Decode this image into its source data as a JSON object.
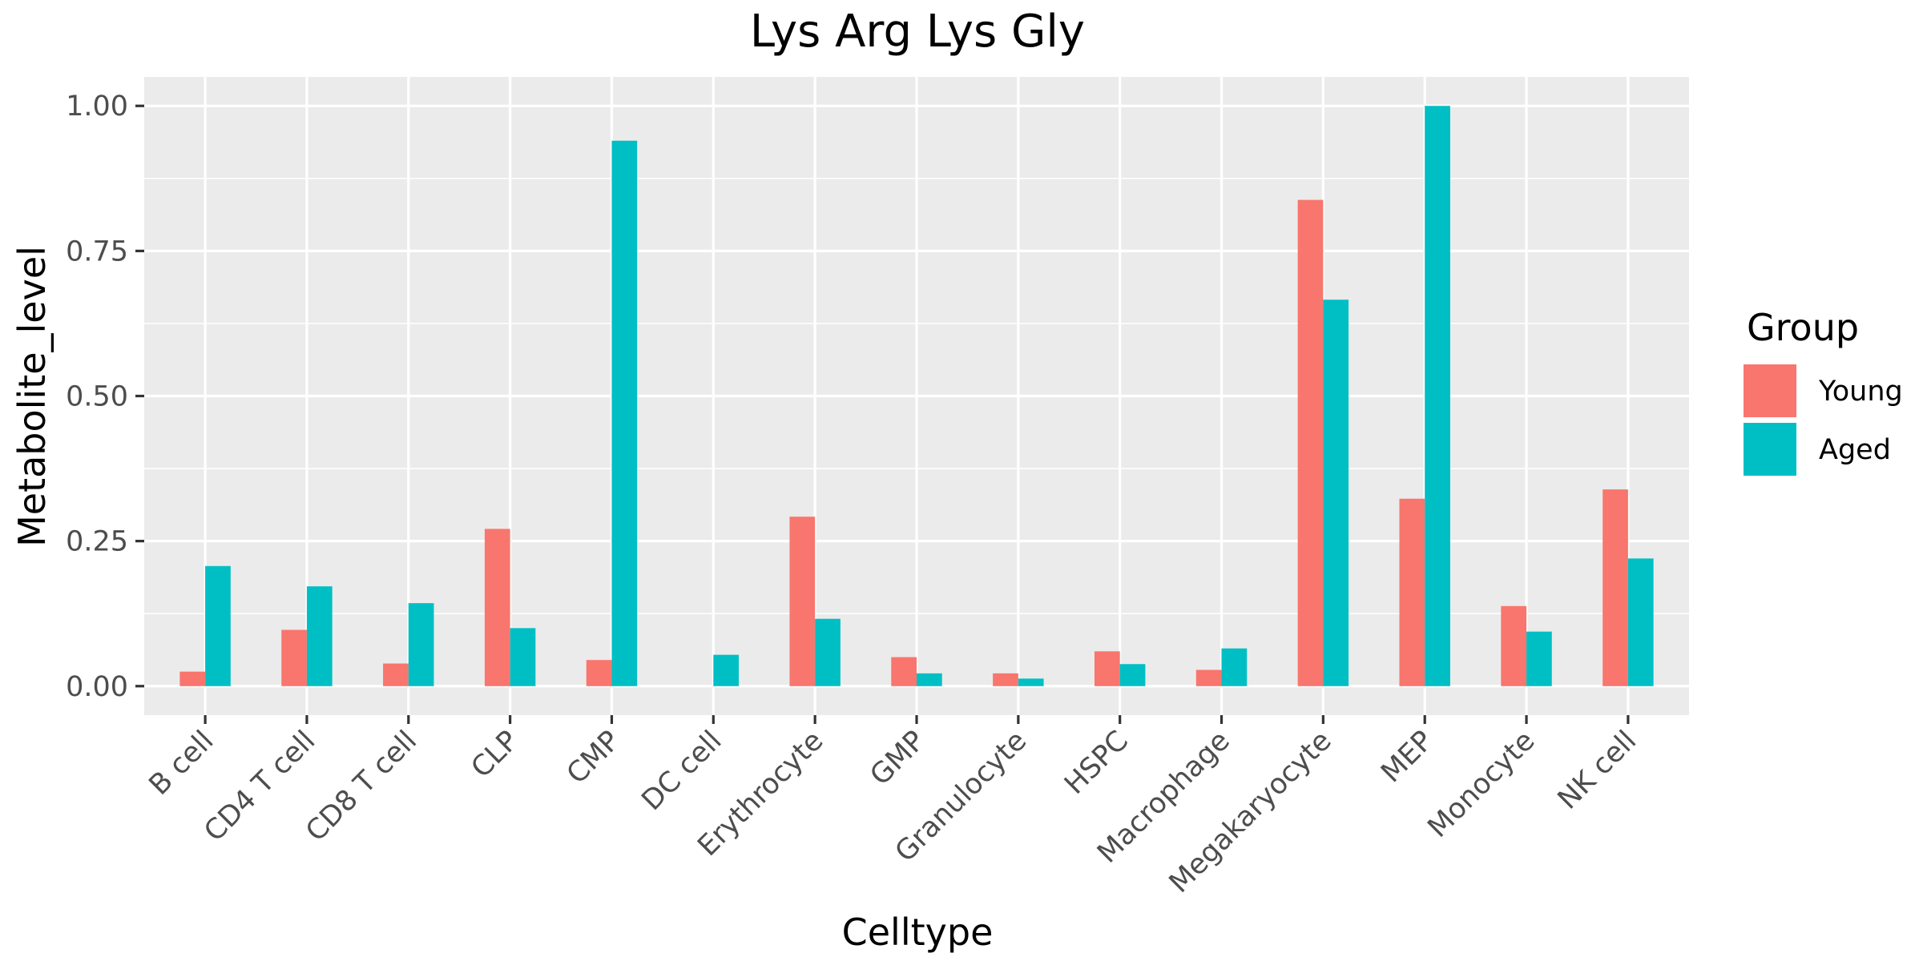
{
  "chart_data": {
    "type": "bar",
    "title": "Lys Arg Lys Gly",
    "xlabel": "Celltype",
    "ylabel": "Metabolite_level",
    "categories": [
      "B cell",
      "CD4 T cell",
      "CD8 T cell",
      "CLP",
      "CMP",
      "DC cell",
      "Erythrocyte",
      "GMP",
      "Granulocyte",
      "HSPC",
      "Macrophage",
      "Megakaryocyte",
      "MEP",
      "Monocyte",
      "NK cell"
    ],
    "series": [
      {
        "name": "Young",
        "color": "#F8766D",
        "values": [
          0.025,
          0.097,
          0.039,
          0.271,
          0.045,
          0.0,
          0.292,
          0.05,
          0.022,
          0.06,
          0.028,
          0.838,
          0.323,
          0.138,
          0.339
        ]
      },
      {
        "name": "Aged",
        "color": "#00BFC4",
        "values": [
          0.207,
          0.172,
          0.143,
          0.1,
          0.94,
          0.054,
          0.116,
          0.022,
          0.013,
          0.038,
          0.065,
          0.666,
          1.0,
          0.094,
          0.22
        ]
      }
    ],
    "ylim": [
      -0.05,
      1.05
    ],
    "yticks": [
      0,
      0.25,
      0.5,
      0.75,
      1.0
    ],
    "ytick_labels": [
      "0.00",
      "0.25",
      "0.50",
      "0.75",
      "1.00"
    ],
    "grid": true,
    "legend": {
      "title": "Group",
      "position": "right"
    }
  }
}
